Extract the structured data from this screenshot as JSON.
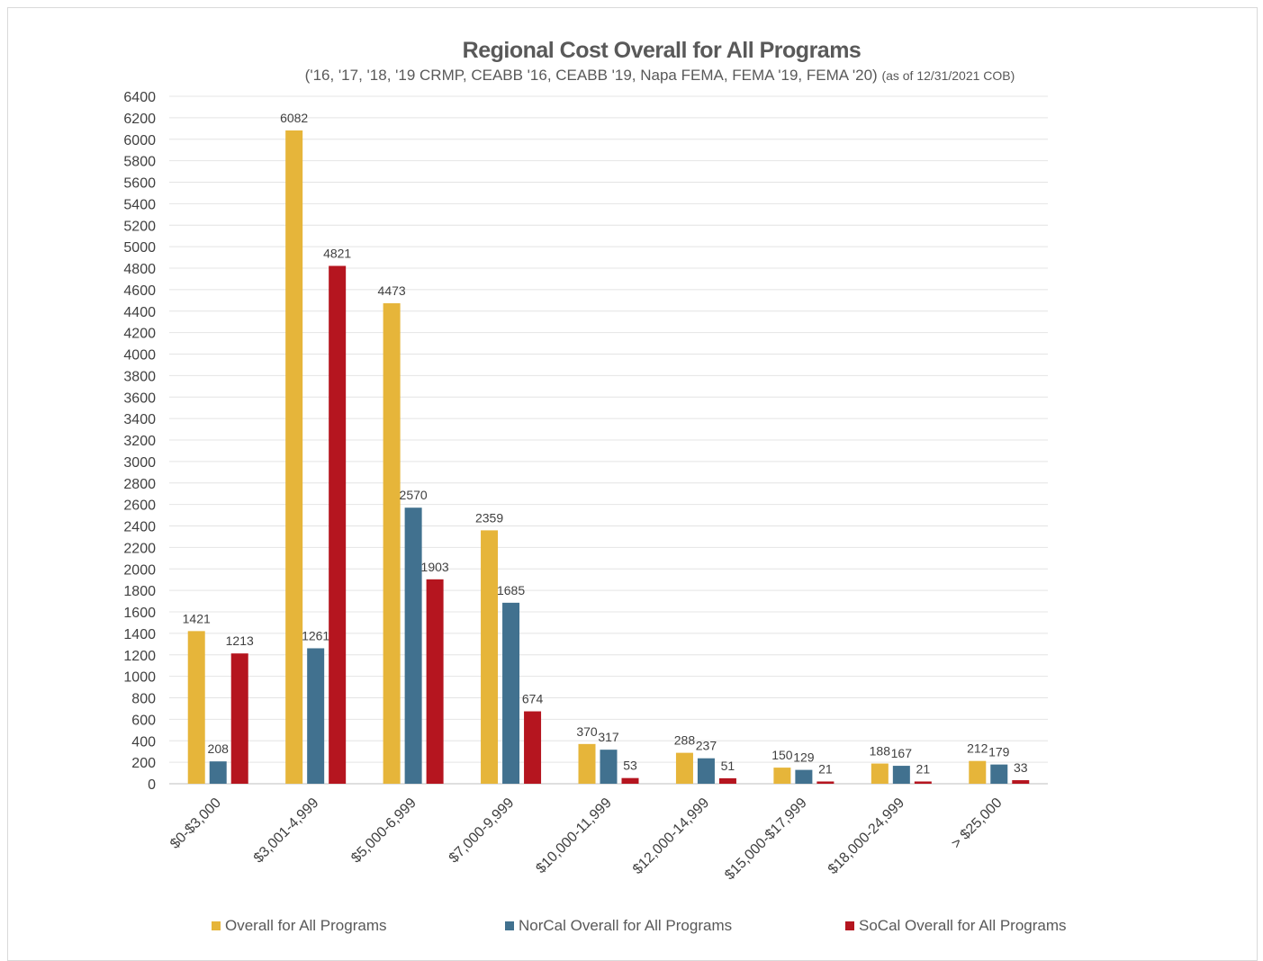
{
  "chart_data": {
    "type": "bar",
    "title": "Regional Cost Overall for All Programs",
    "subtitle": "('16, '17, '18, '19 CRMP, CEABB '16, CEABB '19, Napa FEMA, FEMA '19, FEMA '20)",
    "subtitle_note": "(as of 12/31/2021 COB)",
    "categories": [
      "$0-$3,000",
      "$3,001-4,999",
      "$5,000-6,999",
      "$7,000-9,999",
      "$10,000-11,999",
      "$12,000-14,999",
      "$15,000-$17,999",
      "$18,000-24,999",
      "> $25,000"
    ],
    "series": [
      {
        "name": "Overall for All Programs",
        "color": "#e6b53a",
        "values": [
          1421,
          6082,
          4473,
          2359,
          370,
          288,
          150,
          188,
          212
        ]
      },
      {
        "name": "NorCal Overall for All Programs",
        "color": "#41718f",
        "values": [
          208,
          1261,
          2570,
          1685,
          317,
          237,
          129,
          167,
          179
        ]
      },
      {
        "name": "SoCal Overall for All Programs",
        "color": "#b5151f",
        "values": [
          1213,
          4821,
          1903,
          674,
          53,
          51,
          21,
          21,
          33
        ]
      }
    ],
    "ylim": [
      0,
      6400
    ],
    "ytick_step": 200,
    "grid": true,
    "legend_position": "bottom"
  }
}
